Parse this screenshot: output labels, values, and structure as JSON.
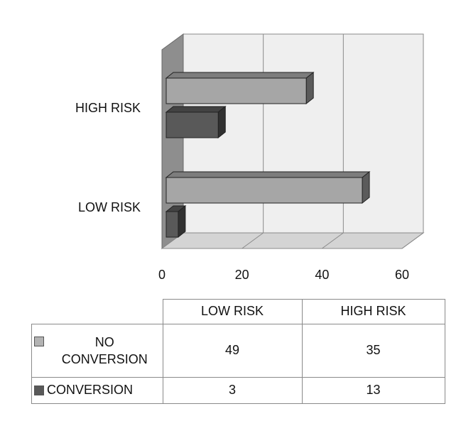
{
  "chart_data": {
    "type": "bar",
    "orientation": "horizontal",
    "style": "3d",
    "categories": [
      "LOW RISK",
      "HIGH RISK"
    ],
    "series": [
      {
        "name": "NO CONVERSION",
        "values": [
          49,
          35
        ],
        "color": "#a6a6a6"
      },
      {
        "name": "CONVERSION",
        "values": [
          3,
          13
        ],
        "color": "#595959"
      }
    ],
    "xlim": [
      0,
      60
    ],
    "x_ticks": [
      "0",
      "20",
      "40",
      "60"
    ],
    "grid": true,
    "legend": "data-table"
  },
  "table": {
    "header": [
      "LOW RISK",
      "HIGH RISK"
    ],
    "rows": [
      {
        "label_line1": "NO",
        "label_line2": "CONVERSION",
        "values": [
          "49",
          "35"
        ]
      },
      {
        "label_line1": "CONVERSION",
        "label_line2": "",
        "values": [
          "3",
          "13"
        ]
      }
    ]
  }
}
